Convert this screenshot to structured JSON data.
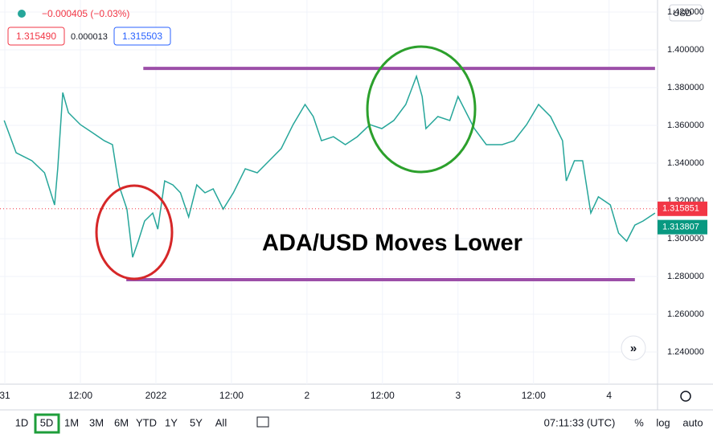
{
  "header": {
    "change": "−0.000405 (−0.03%)",
    "bid": "1.315490",
    "spread": "0.000013",
    "ask": "1.315503",
    "currency": "USD"
  },
  "chart_data": {
    "type": "line",
    "color": "#26a69a",
    "annotation": "ADA/USD Moves Lower",
    "x": [
      -0.1,
      1.8,
      4.3,
      6.3,
      7.9,
      8.4,
      9.2,
      10.1,
      12.0,
      13.9,
      15.8,
      17.1,
      18.1,
      19.4,
      20.3,
      21.2,
      22.2,
      23.5,
      24.3,
      25.4,
      26.7,
      27.9,
      29.2,
      30.5,
      31.8,
      33.1,
      34.7,
      36.3,
      38.2,
      40.1,
      42.0,
      43.9,
      45.8,
      47.7,
      49.0,
      50.3,
      52.2,
      54.1,
      56.0,
      58.0,
      59.9,
      61.8,
      63.7,
      65.4,
      66.3,
      66.9,
      68.8,
      70.7,
      72.0,
      73.3,
      74.6,
      76.5,
      79.0,
      80.9,
      82.9,
      84.8,
      86.7,
      88.6,
      89.2,
      90.5,
      91.8,
      93.1,
      94.3,
      96.2,
      97.5,
      98.8,
      100.1,
      101.4,
      103.3
    ],
    "values": [
      1.3626,
      1.3455,
      1.3413,
      1.3349,
      1.3179,
      1.337,
      1.3774,
      1.3668,
      1.3604,
      1.3562,
      1.3519,
      1.3498,
      1.3285,
      1.3157,
      1.2902,
      1.2987,
      1.3094,
      1.3136,
      1.3051,
      1.3306,
      1.3285,
      1.3243,
      1.3115,
      1.3285,
      1.3243,
      1.3264,
      1.3157,
      1.3243,
      1.337,
      1.3349,
      1.3413,
      1.3477,
      1.3604,
      1.3711,
      1.3647,
      1.3519,
      1.354,
      1.3498,
      1.354,
      1.3604,
      1.3583,
      1.3626,
      1.3711,
      1.386,
      1.3753,
      1.3583,
      1.3647,
      1.3626,
      1.3753,
      1.3668,
      1.3583,
      1.3498,
      1.3498,
      1.3519,
      1.3604,
      1.3711,
      1.3647,
      1.3519,
      1.3306,
      1.3413,
      1.3413,
      1.3136,
      1.3222,
      1.3179,
      1.303,
      1.2987,
      1.3072,
      1.3094,
      1.3136
    ],
    "xlim": [
      -0.77,
      103.7
    ],
    "ylim": [
      1.223,
      1.4264
    ],
    "xticks": [
      {
        "value": 0,
        "label": "31"
      },
      {
        "value": 12,
        "label": "12:00"
      },
      {
        "value": 24,
        "label": "2022"
      },
      {
        "value": 36,
        "label": "12:00"
      },
      {
        "value": 48,
        "label": "2"
      },
      {
        "value": 60,
        "label": "12:00"
      },
      {
        "value": 72,
        "label": "3"
      },
      {
        "value": 84,
        "label": "12:00"
      },
      {
        "value": 96,
        "label": "4"
      }
    ],
    "yticks": [
      {
        "value": 1.24,
        "label": "1.240000"
      },
      {
        "value": 1.26,
        "label": "1.260000"
      },
      {
        "value": 1.28,
        "label": "1.280000"
      },
      {
        "value": 1.3,
        "label": "1.300000"
      },
      {
        "value": 1.32,
        "label": "1.320000"
      },
      {
        "value": 1.34,
        "label": "1.340000"
      },
      {
        "value": 1.36,
        "label": "1.360000"
      },
      {
        "value": 1.38,
        "label": "1.380000"
      },
      {
        "value": 1.4,
        "label": "1.400000"
      },
      {
        "value": 1.42,
        "label": "1.420000"
      }
    ],
    "levels": [
      {
        "value": 1.3902,
        "from": 22.0,
        "to": 103.3,
        "color": "#9c4fa8"
      },
      {
        "value": 1.2783,
        "from": 19.3,
        "to": 100.1,
        "color": "#9c4fa8"
      }
    ],
    "price_labels": [
      {
        "value": 1.315851,
        "label": "1.315851",
        "color": "#f23645"
      },
      {
        "value": 1.313807,
        "label": "1.313807",
        "color": "#089981"
      }
    ],
    "grid": true
  },
  "toolbar": {
    "ranges": [
      "1D",
      "5D",
      "1M",
      "3M",
      "6M",
      "YTD",
      "1Y",
      "5Y",
      "All"
    ],
    "time": "07:11:33 (UTC)",
    "percent": "%",
    "log": "log",
    "auto": "auto"
  }
}
